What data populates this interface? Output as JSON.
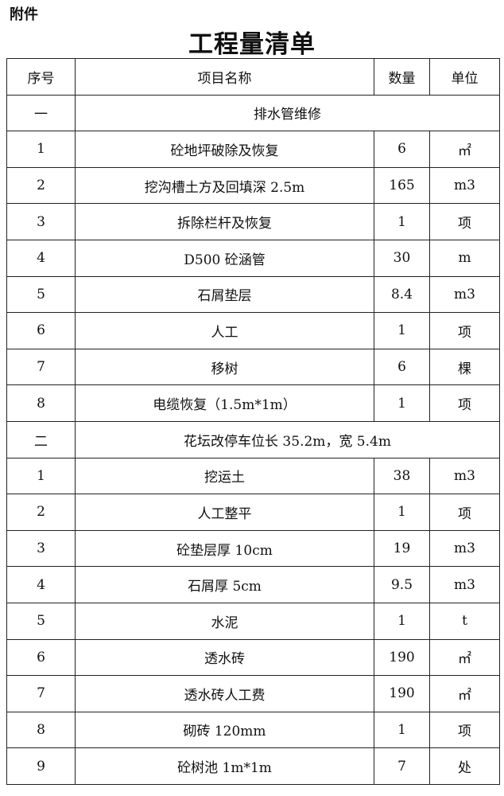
{
  "attachment_label": "附件",
  "title": "工程量清单",
  "headers": [
    "序号",
    "项目名称",
    "数量",
    "单位"
  ],
  "sections": [
    {
      "no": "一",
      "name": "排水管维修",
      "rows": [
        [
          "1",
          "砼地坪破除及恢复",
          "6",
          "㎡"
        ],
        [
          "2",
          "挖沟槽土方及回填深 2.5m",
          "165",
          "m3"
        ],
        [
          "3",
          "拆除栏杆及恢复",
          "1",
          "项"
        ],
        [
          "4",
          "D500 砼涵管",
          "30",
          "m"
        ],
        [
          "5",
          "石屑垫层",
          "8.4",
          "m3"
        ],
        [
          "6",
          "人工",
          "1",
          "项"
        ],
        [
          "7",
          "移树",
          "6",
          "棵"
        ],
        [
          "8",
          "电缆恢复（1.5m*1m）",
          "1",
          "项"
        ]
      ]
    },
    {
      "no": "二",
      "name": "花坛改停车位长 35.2m，宽 5.4m",
      "rows": [
        [
          "1",
          "挖运土",
          "38",
          "m3"
        ],
        [
          "2",
          "人工整平",
          "1",
          "项"
        ],
        [
          "3",
          "砼垫层厚 10cm",
          "19",
          "m3"
        ],
        [
          "4",
          "石屑厚 5cm",
          "9.5",
          "m3"
        ],
        [
          "5",
          "水泥",
          "1",
          "t"
        ],
        [
          "6",
          "透水砖",
          "190",
          "㎡"
        ],
        [
          "7",
          "透水砖人工费",
          "190",
          "㎡"
        ],
        [
          "8",
          "砌砖 120mm",
          "1",
          "项"
        ],
        [
          "9",
          "砼树池 1m*1m",
          "7",
          "处"
        ]
      ]
    }
  ]
}
